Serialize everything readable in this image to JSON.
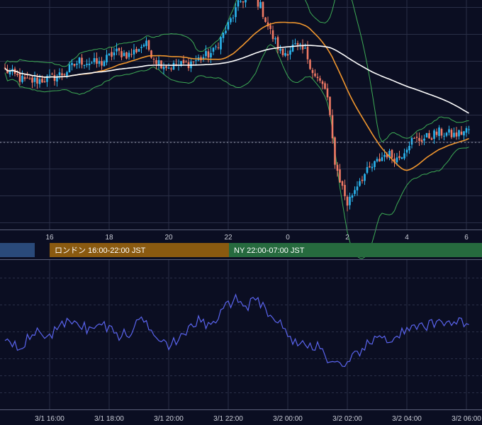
{
  "colors": {
    "background": "#0b0e22",
    "grid": "#2a2f47",
    "axis_line": "#5a5f78",
    "candle_up": "#2bb6ee",
    "candle_down": "#f07a64",
    "ma_short": "#f0962e",
    "ma_long": "#ffffff",
    "bollinger": "#3dab55",
    "oscillator": "#5a64ee",
    "session_tokyo": "#2a4a7a",
    "session_london": "#8a5a10",
    "session_ny": "#266a3e"
  },
  "sessions": [
    {
      "name": "tokyo",
      "label": ""
    },
    {
      "name": "london",
      "label": "ロンドン 16:00-22:00 JST"
    },
    {
      "name": "ny",
      "label": "NY 22:00-07:00 JST"
    }
  ],
  "chart_data": [
    {
      "type": "candlestick",
      "x_start_hour": 14.5,
      "x_end_hour": 30.1,
      "bar_interval_minutes": 5,
      "xticks": [
        "16",
        "18",
        "20",
        "22",
        "0",
        "2",
        "4",
        "6"
      ],
      "grid": true,
      "overlays": [
        "moving average (orange)",
        "moving average (white)",
        "Bollinger Bands (green)"
      ],
      "price_path": [
        [
          14.5,
          0.34
        ],
        [
          15.2,
          0.26
        ],
        [
          16.0,
          0.28
        ],
        [
          16.5,
          0.32
        ],
        [
          17.0,
          0.4
        ],
        [
          17.7,
          0.38
        ],
        [
          18.2,
          0.46
        ],
        [
          18.7,
          0.44
        ],
        [
          19.2,
          0.52
        ],
        [
          19.6,
          0.4
        ],
        [
          20.0,
          0.36
        ],
        [
          20.6,
          0.38
        ],
        [
          21.1,
          0.42
        ],
        [
          21.5,
          0.46
        ],
        [
          22.0,
          0.64
        ],
        [
          22.4,
          0.8
        ],
        [
          22.8,
          0.86
        ],
        [
          23.1,
          0.76
        ],
        [
          23.4,
          0.6
        ],
        [
          23.8,
          0.44
        ],
        [
          24.2,
          0.5
        ],
        [
          24.6,
          0.46
        ],
        [
          24.9,
          0.3
        ],
        [
          25.3,
          0.2
        ],
        [
          25.6,
          -0.3
        ],
        [
          26.0,
          -0.56
        ],
        [
          26.4,
          -0.4
        ],
        [
          26.9,
          -0.3
        ],
        [
          27.3,
          -0.22
        ],
        [
          27.7,
          -0.26
        ],
        [
          28.1,
          -0.14
        ],
        [
          28.6,
          -0.12
        ],
        [
          29.1,
          -0.08
        ],
        [
          29.6,
          -0.1
        ],
        [
          30.1,
          -0.06
        ]
      ]
    },
    {
      "type": "line",
      "x_start_hour": 14.5,
      "x_end_hour": 30.1,
      "xticks": [
        "3/1 16:00",
        "3/1 18:00",
        "3/1 20:00",
        "3/1 22:00",
        "3/2 00:00",
        "3/2 02:00",
        "3/2 04:00",
        "3/2 06:00"
      ],
      "grid": true,
      "series_path": [
        [
          14.5,
          0.0
        ],
        [
          15.0,
          -0.1
        ],
        [
          15.5,
          0.05
        ],
        [
          16.0,
          0.02
        ],
        [
          16.4,
          0.12
        ],
        [
          16.8,
          0.2
        ],
        [
          17.3,
          0.08
        ],
        [
          17.8,
          0.14
        ],
        [
          18.3,
          0.02
        ],
        [
          18.7,
          0.04
        ],
        [
          19.1,
          0.22
        ],
        [
          19.5,
          0.06
        ],
        [
          20.0,
          -0.08
        ],
        [
          20.5,
          0.0
        ],
        [
          21.0,
          0.2
        ],
        [
          21.4,
          0.1
        ],
        [
          21.8,
          0.28
        ],
        [
          22.2,
          0.42
        ],
        [
          22.6,
          0.34
        ],
        [
          23.0,
          0.4
        ],
        [
          23.4,
          0.26
        ],
        [
          23.8,
          0.12
        ],
        [
          24.2,
          -0.04
        ],
        [
          24.6,
          -0.1
        ],
        [
          25.0,
          -0.08
        ],
        [
          25.4,
          -0.26
        ],
        [
          25.9,
          -0.36
        ],
        [
          26.3,
          -0.18
        ],
        [
          26.7,
          -0.08
        ],
        [
          27.1,
          0.0
        ],
        [
          27.5,
          -0.02
        ],
        [
          27.9,
          0.06
        ],
        [
          28.4,
          0.1
        ],
        [
          28.9,
          0.14
        ],
        [
          29.4,
          0.18
        ],
        [
          30.1,
          0.16
        ]
      ]
    }
  ]
}
